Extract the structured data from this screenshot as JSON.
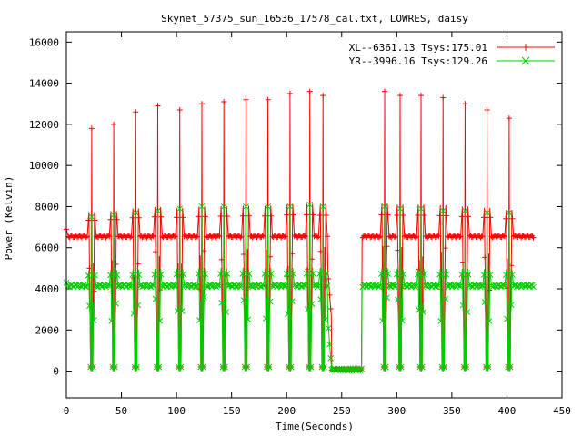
{
  "chart_data": {
    "type": "line",
    "title": "Skynet_57375_sun_16536_17578_cal.txt, LOWRES, daisy",
    "xlabel": "Time(Seconds)",
    "ylabel": "Power (Kelvin)",
    "xlim": [
      0,
      450
    ],
    "ylim": [
      -1300,
      16500
    ],
    "xticks": [
      0,
      50,
      100,
      150,
      200,
      250,
      300,
      350,
      400,
      450
    ],
    "yticks": [
      0,
      2000,
      4000,
      6000,
      8000,
      10000,
      12000,
      14000,
      16000
    ],
    "grid": false,
    "legend_position": "top-right",
    "series": [
      {
        "name": "XL--6361.13 Tsys:175.01",
        "color": "#ff0000",
        "marker": "plus",
        "baseline": 6550,
        "lead_in": [
          [
            0,
            6900
          ],
          [
            1,
            6700
          ]
        ],
        "peaks": [
          [
            23,
            11800
          ],
          [
            43,
            12000
          ],
          [
            63,
            12600
          ],
          [
            83,
            12900
          ],
          [
            103,
            12700
          ],
          [
            123,
            13000
          ],
          [
            143,
            13100
          ],
          [
            163,
            13200
          ],
          [
            183,
            13200
          ],
          [
            203,
            13500
          ],
          [
            221,
            13600
          ],
          [
            233,
            13400
          ],
          [
            289,
            13600
          ],
          [
            303,
            13400
          ],
          [
            322,
            13400
          ],
          [
            342,
            13300
          ],
          [
            362,
            13000
          ],
          [
            382,
            12700
          ],
          [
            402,
            12300
          ]
        ],
        "gap": {
          "start": 241,
          "end": 268,
          "level": 80
        },
        "bump": {
          "x": 276,
          "peak": 4000
        },
        "end_x": 424
      },
      {
        "name": "YR--3996.16 Tsys:129.26",
        "color": "#00cc00",
        "marker": "cross",
        "baseline": 4150,
        "lead_in": [
          [
            0,
            4300
          ],
          [
            1,
            4200
          ]
        ],
        "peaks": [
          [
            23,
            7500
          ],
          [
            43,
            7600
          ],
          [
            63,
            7700
          ],
          [
            83,
            7800
          ],
          [
            103,
            7900
          ],
          [
            123,
            8000
          ],
          [
            143,
            8000
          ],
          [
            163,
            8000
          ],
          [
            183,
            8000
          ],
          [
            203,
            8000
          ],
          [
            221,
            8100
          ],
          [
            233,
            8000
          ],
          [
            289,
            8000
          ],
          [
            303,
            7900
          ],
          [
            322,
            7900
          ],
          [
            342,
            7800
          ],
          [
            362,
            7800
          ],
          [
            382,
            7700
          ],
          [
            402,
            7700
          ]
        ],
        "gap": {
          "start": 241,
          "end": 268,
          "level": 80
        },
        "bump": {
          "x": 276,
          "peak": 2400
        },
        "end_x": 424
      }
    ]
  }
}
